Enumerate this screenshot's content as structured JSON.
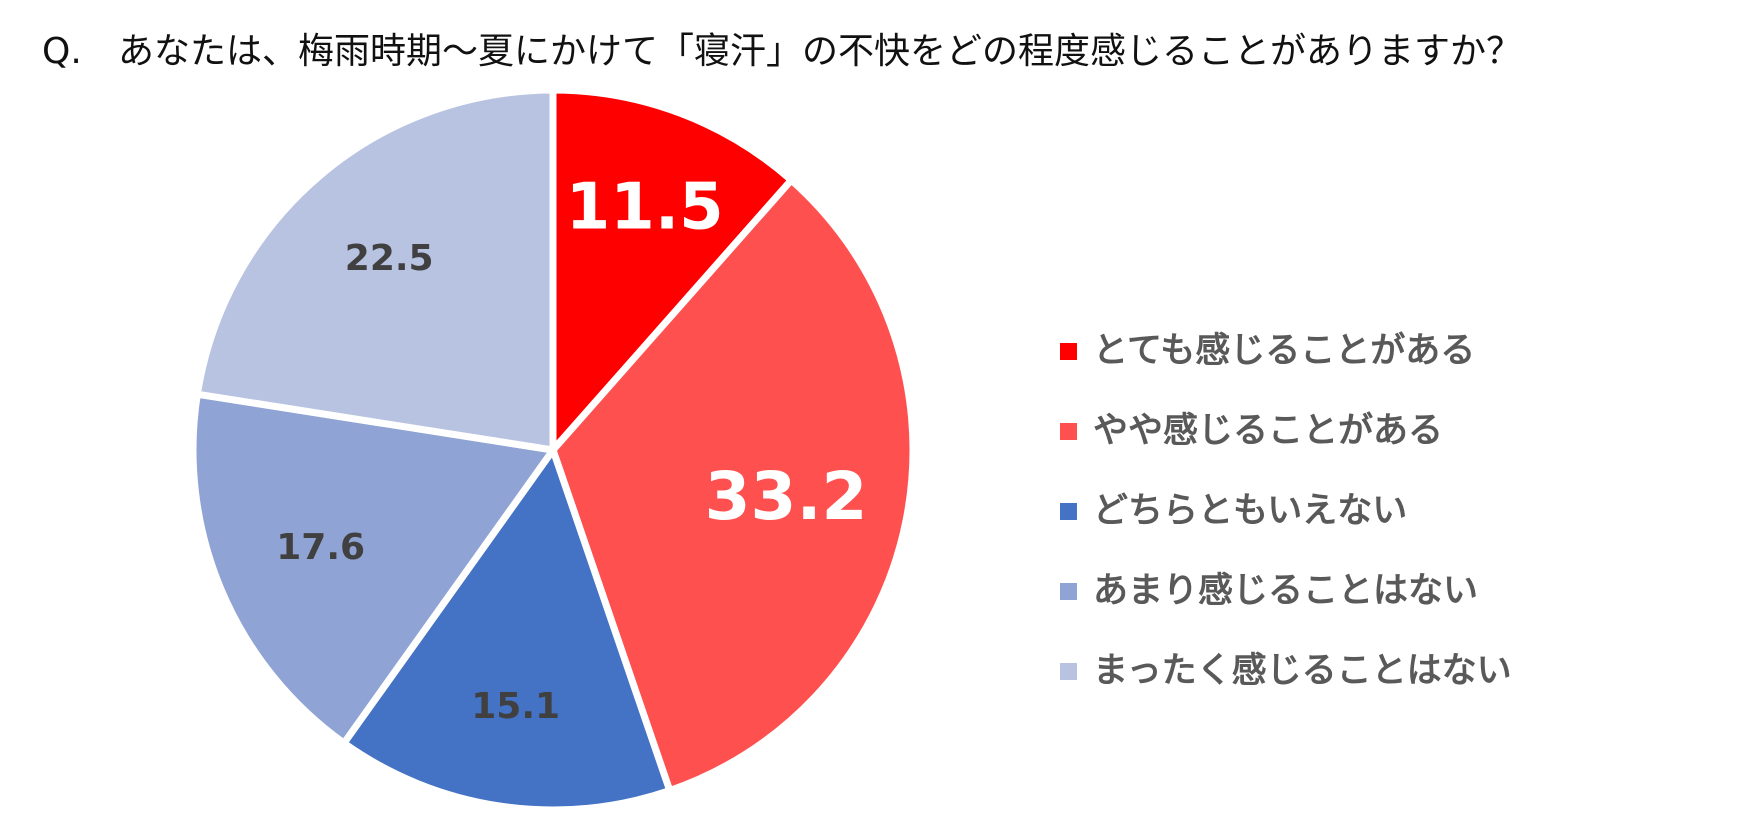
{
  "question": {
    "prefix": "Q.",
    "text": "あなたは、梅雨時期～夏にかけて「寝汗」の不快をどの程度感じることがありますか？"
  },
  "chart_data": {
    "type": "pie",
    "categories": [
      "とても感じることがある",
      "やや感じることがある",
      "どちらともいえない",
      "あまり感じることはない",
      "まったく感じることはない"
    ],
    "values": [
      11.5,
      33.2,
      15.1,
      17.6,
      22.5
    ],
    "value_labels": [
      "11.5",
      "33.2",
      "15.1",
      "17.6",
      "22.5"
    ],
    "colors": [
      "#FF0000",
      "#FF5050",
      "#4472C4",
      "#8FA3D4",
      "#B8C3E2"
    ],
    "label_colors": [
      "#FFFFFF",
      "#FFFFFF",
      "#404040",
      "#404040",
      "#404040"
    ],
    "start": "12 o'clock",
    "direction": "clockwise",
    "legend_position": "right"
  }
}
